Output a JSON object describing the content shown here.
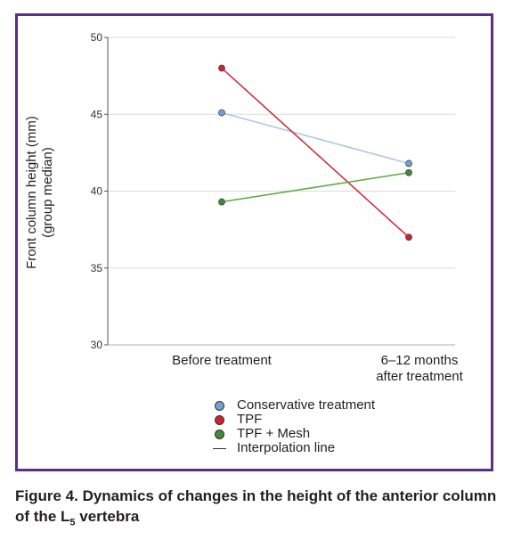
{
  "chart_data": {
    "type": "line",
    "categories": [
      "Before treatment",
      "6–12 months after treatment"
    ],
    "category_lines": [
      [
        "Before treatment"
      ],
      [
        "6–12 months",
        "after treatment"
      ]
    ],
    "ylabel_lines": [
      "Front column height (mm)",
      "(group median)"
    ],
    "ylim": [
      30,
      50
    ],
    "yticks": [
      30,
      35,
      40,
      45,
      50
    ],
    "grid": true,
    "legend_position": "bottom",
    "series": [
      {
        "name": "Conservative treatment",
        "values": [
          45.1,
          41.8
        ],
        "color": "#6fa1d8",
        "line_color": "#a9c4e4"
      },
      {
        "name": "TPF",
        "values": [
          48.0,
          37.0
        ],
        "color": "#d1212f",
        "line_color": "#d1212f"
      },
      {
        "name": "TPF + Mesh",
        "values": [
          39.3,
          41.2
        ],
        "color": "#3b8a3e",
        "line_color": "#5aab3a"
      }
    ],
    "interpolation_label": "Interpolation line"
  },
  "caption": {
    "prefix": "Figure 4. Dynamics of changes in the height of the anterior column of the L",
    "subscript": "5",
    "suffix": " vertebra"
  },
  "colors": {
    "frame": "#5b2d86"
  }
}
